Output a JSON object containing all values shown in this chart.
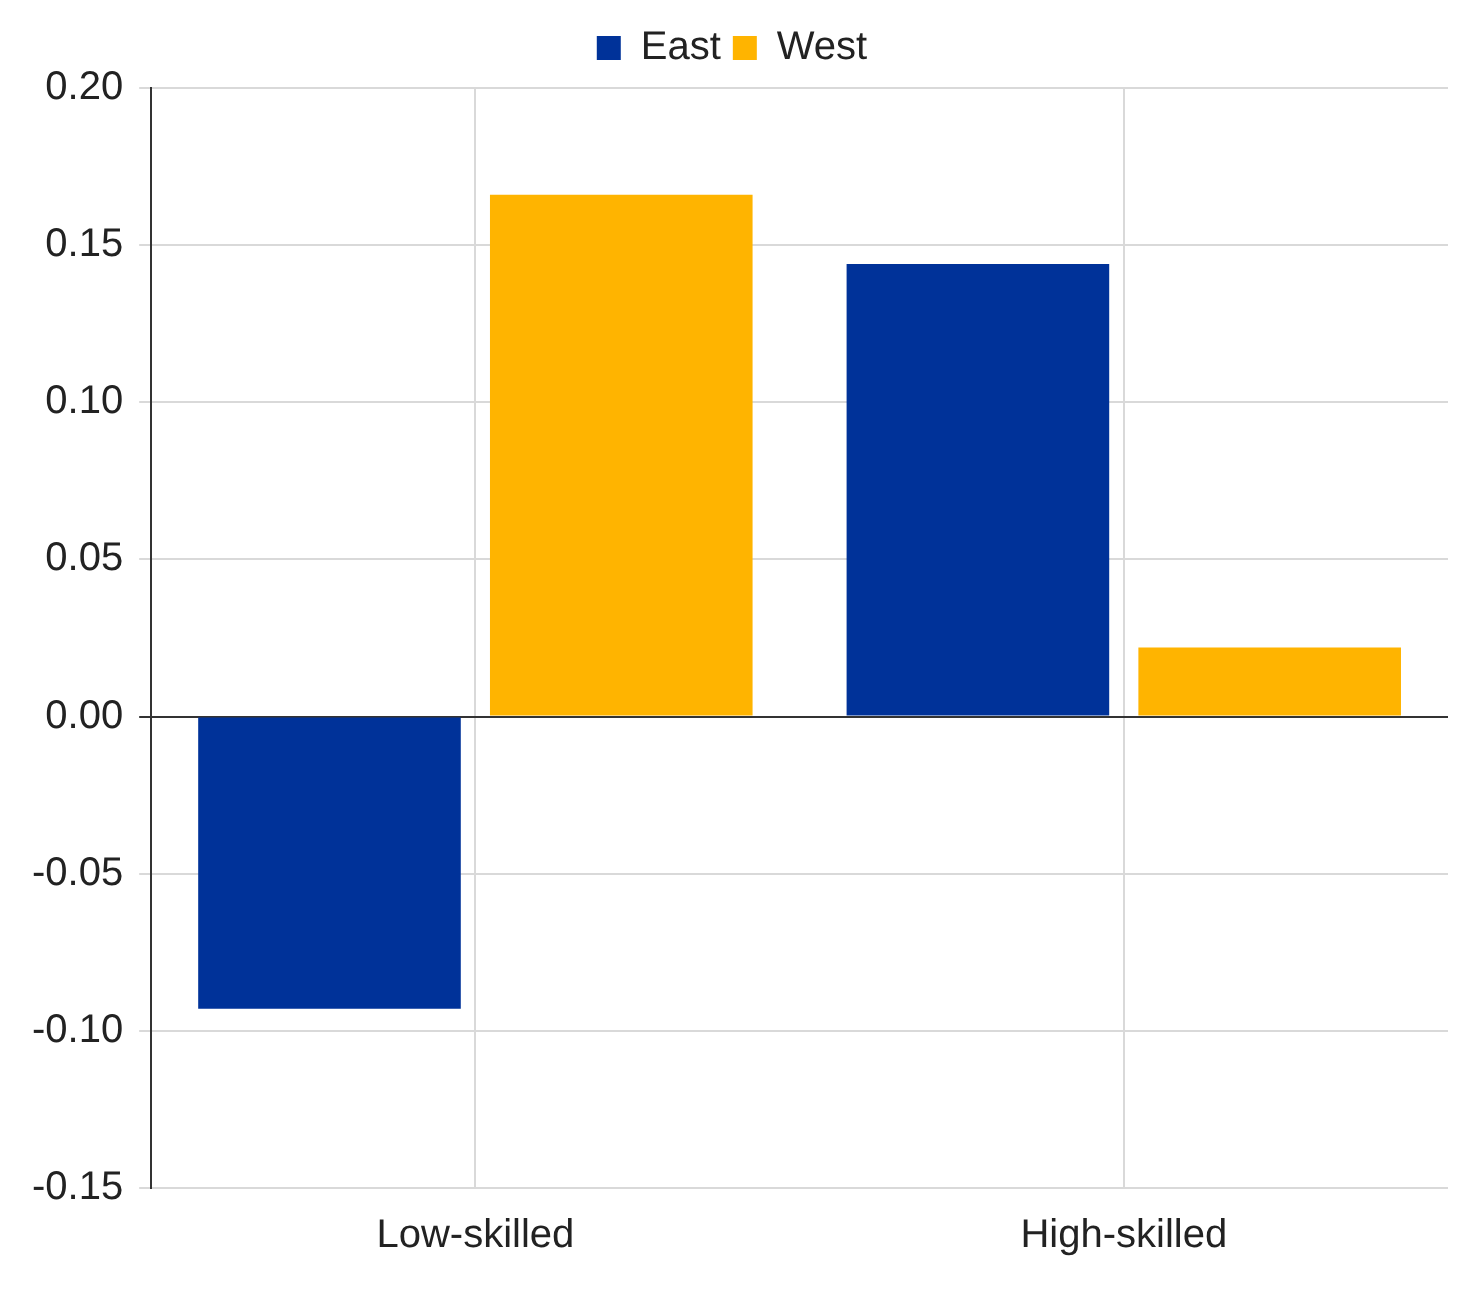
{
  "chart_data": {
    "type": "bar",
    "categories": [
      "Low-skilled",
      "High-skilled"
    ],
    "series": [
      {
        "name": "East",
        "color": "#003299",
        "values": [
          -0.093,
          0.144
        ]
      },
      {
        "name": "West",
        "color": "#ffb400",
        "values": [
          0.166,
          0.022
        ]
      }
    ],
    "ylim": [
      -0.15,
      0.2
    ],
    "yticks": [
      {
        "value": -0.15,
        "label": "-0.15"
      },
      {
        "value": -0.1,
        "label": "-0.10"
      },
      {
        "value": -0.05,
        "label": "-0.05"
      },
      {
        "value": 0,
        "label": "0.00"
      },
      {
        "value": 0.05,
        "label": "0.05"
      },
      {
        "value": 0.1,
        "label": "0.10"
      },
      {
        "value": 0.15,
        "label": "0.15"
      },
      {
        "value": 0.2,
        "label": "0.20"
      }
    ],
    "grid": true,
    "legend": "top"
  }
}
